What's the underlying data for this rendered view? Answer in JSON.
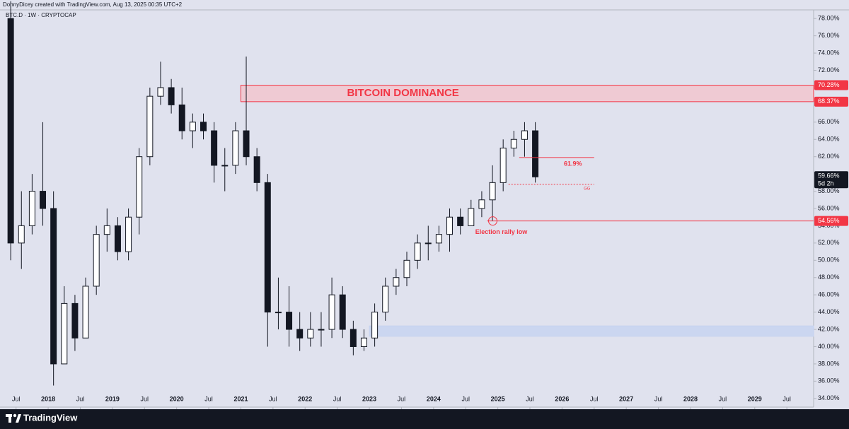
{
  "header": {
    "credit": "DonnyDicey created with TradingView.com, Aug 13, 2025 00:35 UTC+2",
    "symbol": "BTC.D · 1W · CRYPTOCAP"
  },
  "footer": {
    "brand": "TradingView"
  },
  "chart_data": {
    "type": "candlestick",
    "x": [
      "2017-05",
      "2017-07",
      "2017-09",
      "2017-11",
      "2018-01",
      "2018-03",
      "2018-05",
      "2018-07",
      "2018-09",
      "2018-11",
      "2019-01",
      "2019-03",
      "2019-05",
      "2019-07",
      "2019-09",
      "2019-11",
      "2020-01",
      "2020-03",
      "2020-05",
      "2020-07",
      "2020-09",
      "2020-11",
      "2021-01",
      "2021-03",
      "2021-05",
      "2021-07",
      "2021-09",
      "2021-11",
      "2022-01",
      "2022-03",
      "2022-05",
      "2022-07",
      "2022-09",
      "2022-11",
      "2023-01",
      "2023-03",
      "2023-05",
      "2023-07",
      "2023-09",
      "2023-11",
      "2024-01",
      "2024-03",
      "2024-05",
      "2024-07",
      "2024-09",
      "2024-11",
      "2025-01",
      "2025-03",
      "2025-05",
      "2025-07"
    ],
    "open": [
      78,
      52,
      54,
      58,
      56,
      38,
      45,
      41,
      47,
      53,
      54,
      51,
      55,
      62,
      69,
      70,
      68,
      65,
      66,
      65,
      61,
      61,
      65,
      62,
      59,
      44,
      44,
      42,
      41,
      42,
      42,
      46,
      42,
      40,
      41,
      44,
      47,
      48,
      50,
      52,
      52,
      53,
      55,
      54,
      56,
      57,
      59,
      63,
      64,
      65
    ],
    "high": [
      80,
      58,
      60,
      66,
      58,
      47,
      46,
      48,
      54,
      56,
      55,
      56,
      63,
      70,
      73,
      71,
      70,
      67,
      67,
      66,
      63,
      66,
      73.6,
      63,
      60,
      48,
      47,
      44,
      44,
      44,
      48,
      47,
      43,
      42,
      45,
      48,
      49,
      51,
      53,
      54,
      54,
      56,
      56,
      57,
      58,
      61,
      64,
      65,
      66,
      66
    ],
    "low": [
      50,
      49,
      53,
      54,
      35.5,
      38,
      39.5,
      41,
      46,
      51,
      50,
      50,
      53,
      61,
      68,
      67,
      64,
      63,
      64,
      59,
      58,
      60,
      61,
      58,
      40,
      42,
      40,
      39.5,
      40,
      40,
      41,
      41,
      39,
      39.5,
      40,
      43,
      46,
      47,
      49,
      50,
      51,
      51,
      53,
      54,
      55,
      54.56,
      58,
      62,
      62,
      59
    ],
    "close": [
      52,
      54,
      58,
      56,
      38,
      45,
      41,
      47,
      53,
      54,
      51,
      55,
      62,
      69,
      70,
      68,
      65,
      66,
      65,
      61,
      61,
      65,
      62,
      59,
      44,
      44,
      42,
      41,
      42,
      42,
      46,
      42,
      40,
      41,
      44,
      47,
      48,
      50,
      52,
      52,
      53,
      55,
      54,
      56,
      57,
      59,
      63,
      64,
      65,
      59.66
    ],
    "up_color": "#ffffff",
    "down_color": "#131722",
    "xlim": [
      "2017-04",
      "2029-12"
    ],
    "xticks": [
      {
        "value": "2017-07",
        "label": "Jul"
      },
      {
        "value": "2018-01",
        "label": "2018"
      },
      {
        "value": "2018-07",
        "label": "Jul"
      },
      {
        "value": "2019-01",
        "label": "2019"
      },
      {
        "value": "2019-07",
        "label": "Jul"
      },
      {
        "value": "2020-01",
        "label": "2020"
      },
      {
        "value": "2020-07",
        "label": "Jul"
      },
      {
        "value": "2021-01",
        "label": "2021"
      },
      {
        "value": "2021-07",
        "label": "Jul"
      },
      {
        "value": "2022-01",
        "label": "2022"
      },
      {
        "value": "2022-07",
        "label": "Jul"
      },
      {
        "value": "2023-01",
        "label": "2023"
      },
      {
        "value": "2023-07",
        "label": "Jul"
      },
      {
        "value": "2024-01",
        "label": "2024"
      },
      {
        "value": "2024-07",
        "label": "Jul"
      },
      {
        "value": "2025-01",
        "label": "2025"
      },
      {
        "value": "2025-07",
        "label": "Jul"
      },
      {
        "value": "2026-01",
        "label": "2026"
      },
      {
        "value": "2026-07",
        "label": "Jul"
      },
      {
        "value": "2027-01",
        "label": "2027"
      },
      {
        "value": "2027-07",
        "label": "Jul"
      },
      {
        "value": "2028-01",
        "label": "2028"
      },
      {
        "value": "2028-07",
        "label": "Jul"
      },
      {
        "value": "2029-01",
        "label": "2029"
      },
      {
        "value": "2029-07",
        "label": "Jul"
      }
    ],
    "ylim": [
      33,
      79
    ],
    "yticks": [
      {
        "value": 34,
        "label": "34.00%"
      },
      {
        "value": 36,
        "label": "36.00%"
      },
      {
        "value": 38,
        "label": "38.00%"
      },
      {
        "value": 40,
        "label": "40.00%"
      },
      {
        "value": 42,
        "label": "42.00%"
      },
      {
        "value": 44,
        "label": "44.00%"
      },
      {
        "value": 46,
        "label": "46.00%"
      },
      {
        "value": 48,
        "label": "48.00%"
      },
      {
        "value": 50,
        "label": "50.00%"
      },
      {
        "value": 52,
        "label": "52.00%"
      },
      {
        "value": 54,
        "label": "54.00%"
      },
      {
        "value": 56,
        "label": "56.00%"
      },
      {
        "value": 58,
        "label": "58.00%"
      },
      {
        "value": 62,
        "label": "62.00%"
      },
      {
        "value": 64,
        "label": "64.00%"
      },
      {
        "value": 66,
        "label": "66.00%"
      },
      {
        "value": 72,
        "label": "72.00%"
      },
      {
        "value": 74,
        "label": "74.00%"
      },
      {
        "value": 76,
        "label": "76.00%"
      },
      {
        "value": 78,
        "label": "78.00%"
      }
    ],
    "zones": [
      {
        "label": "BITCOIN DOMINANCE",
        "from": "2021-01",
        "low": 68.37,
        "high": 70.28,
        "low_label": "68.37%",
        "high_label": "70.28%",
        "fill": "#f3c4cc",
        "stroke": "#f23645"
      },
      {
        "from": "2023-01",
        "low": 41.2,
        "high": 42.4,
        "fill": "#c5d3f0",
        "stroke": "#c5d3f0"
      }
    ],
    "levels": [
      {
        "value": 54.56,
        "label": "54.56%",
        "from": "2024-11",
        "note": "Election rally low",
        "color": "#f23645",
        "style": "solid"
      },
      {
        "value": 61.9,
        "label": "61.9%",
        "from": "2025-05",
        "to": "2026-07",
        "color": "#f23645",
        "style": "solid"
      },
      {
        "value": 58.8,
        "label": "GG",
        "from": "2025-03",
        "to": "2026-07",
        "color": "#f23645",
        "style": "dotted"
      }
    ],
    "last_price": {
      "value": 59.66,
      "label": "59.66%",
      "countdown": "5d 2h"
    }
  }
}
